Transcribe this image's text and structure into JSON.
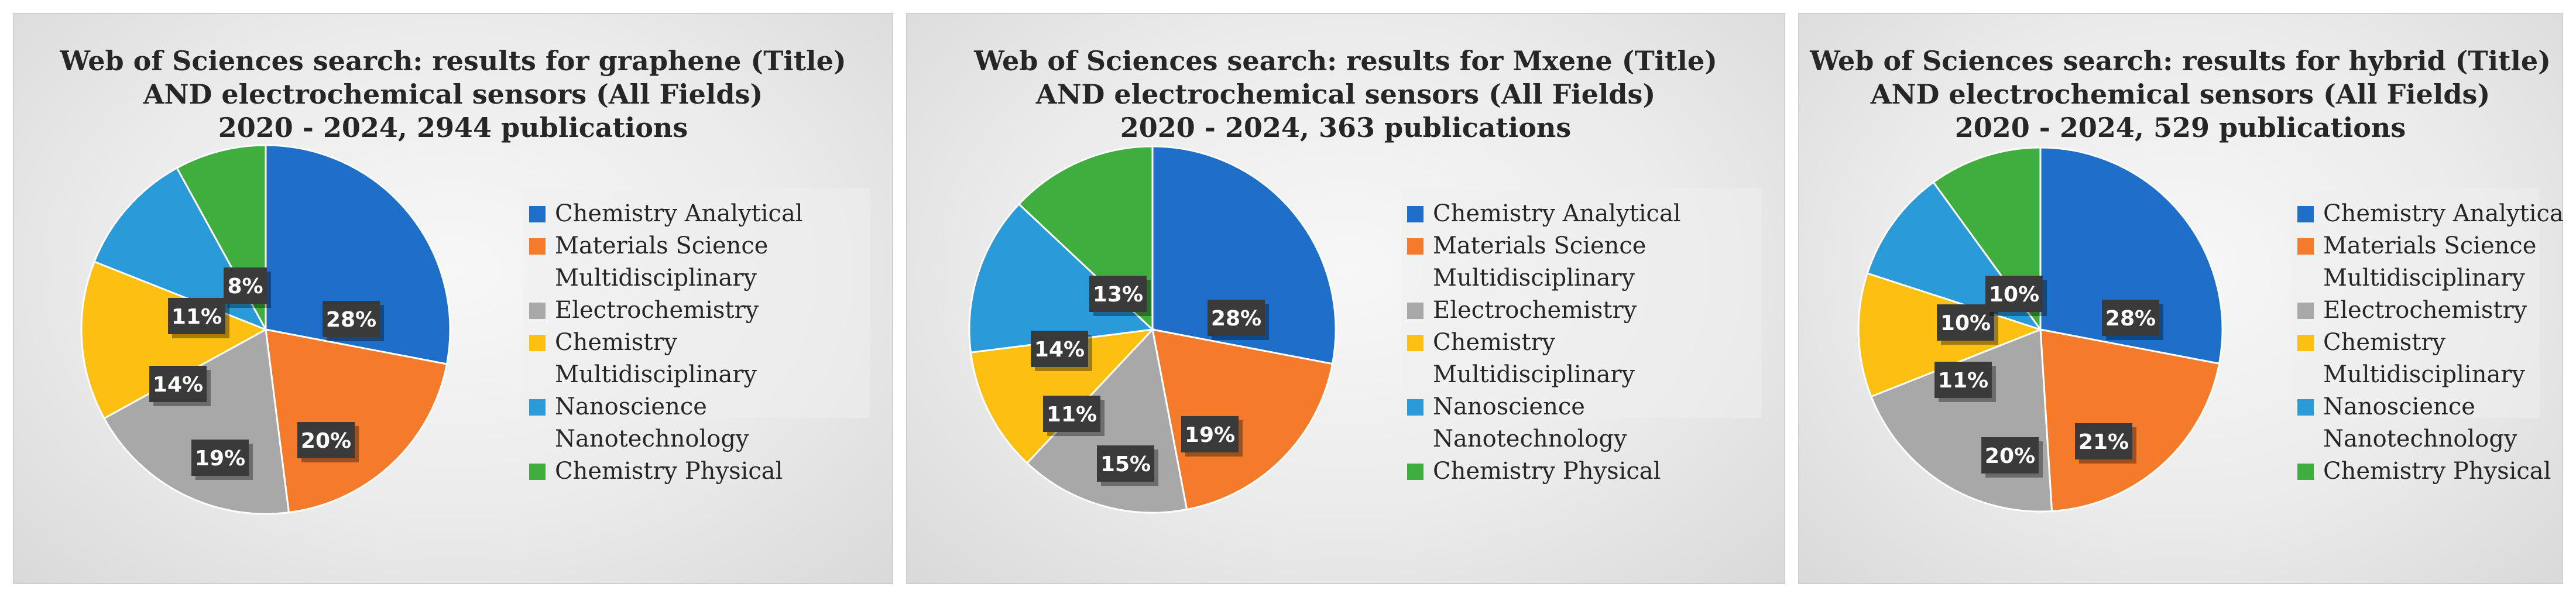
{
  "colors": {
    "Chemistry Analytical": "#1f6fc9",
    "Materials Science Multidisciplinary": "#f47b2c",
    "Electrochemistry": "#a8a8a8",
    "Chemistry Multidisciplinary": "#fdbf12",
    "Nanoscience Nanotechnology": "#2a9ad8",
    "Chemistry Physical": "#3fae3f"
  },
  "chart_data": [
    {
      "type": "pie",
      "title_lines": [
        "Web of Sciences search: results for graphene (Title)",
        "AND electrochemical sensors (All Fields)",
        "2020 - 2024, 2944 publications"
      ],
      "legend_position": "right",
      "legend_lines": [
        {
          "text": "Chemistry Analytical",
          "swatch": "Chemistry Analytical"
        },
        {
          "text": "Materials Science",
          "swatch": "Materials Science Multidisciplinary"
        },
        {
          "text": "Multidisciplinary",
          "swatch": null
        },
        {
          "text": "Electrochemistry",
          "swatch": "Electrochemistry"
        },
        {
          "text": "Chemistry",
          "swatch": "Chemistry Multidisciplinary"
        },
        {
          "text": "Multidisciplinary",
          "swatch": null
        },
        {
          "text": "Nanoscience",
          "swatch": "Nanoscience Nanotechnology"
        },
        {
          "text": "Nanotechnology",
          "swatch": null
        },
        {
          "text": "Chemistry Physical",
          "swatch": "Chemistry Physical"
        }
      ],
      "slices": [
        {
          "category": "Chemistry Analytical",
          "value": 28,
          "label": "28%"
        },
        {
          "category": "Materials Science Multidisciplinary",
          "value": 20,
          "label": "20%"
        },
        {
          "category": "Electrochemistry",
          "value": 19,
          "label": "19%"
        },
        {
          "category": "Chemistry Multidisciplinary",
          "value": 14,
          "label": "14%"
        },
        {
          "category": "Nanoscience Nanotechnology",
          "value": 11,
          "label": "11%"
        },
        {
          "category": "Chemistry Physical",
          "value": 8,
          "label": "8%"
        }
      ]
    },
    {
      "type": "pie",
      "title_lines": [
        "Web of Sciences search: results for Mxene (Title)",
        "AND electrochemical sensors (All Fields)",
        "2020 - 2024, 363 publications"
      ],
      "legend_position": "right",
      "legend_lines": [
        {
          "text": "Chemistry Analytical",
          "swatch": "Chemistry Analytical"
        },
        {
          "text": "Materials Science",
          "swatch": "Materials Science Multidisciplinary"
        },
        {
          "text": "Multidisciplinary",
          "swatch": null
        },
        {
          "text": "Electrochemistry",
          "swatch": "Electrochemistry"
        },
        {
          "text": "Chemistry",
          "swatch": "Chemistry Multidisciplinary"
        },
        {
          "text": "Multidisciplinary",
          "swatch": null
        },
        {
          "text": "Nanoscience",
          "swatch": "Nanoscience Nanotechnology"
        },
        {
          "text": "Nanotechnology",
          "swatch": null
        },
        {
          "text": "Chemistry Physical",
          "swatch": "Chemistry Physical"
        }
      ],
      "slices": [
        {
          "category": "Chemistry Analytical",
          "value": 28,
          "label": "28%"
        },
        {
          "category": "Materials Science Multidisciplinary",
          "value": 19,
          "label": "19%"
        },
        {
          "category": "Electrochemistry",
          "value": 15,
          "label": "15%"
        },
        {
          "category": "Chemistry Multidisciplinary",
          "value": 11,
          "label": "11%"
        },
        {
          "category": "Nanoscience Nanotechnology",
          "value": 14,
          "label": "14%"
        },
        {
          "category": "Chemistry Physical",
          "value": 13,
          "label": "13%"
        }
      ]
    },
    {
      "type": "pie",
      "title_lines": [
        "Web of Sciences search: results for hybrid (Title)",
        "AND electrochemical sensors (All Fields)",
        "2020 - 2024, 529 publications"
      ],
      "legend_position": "right",
      "legend_lines": [
        {
          "text": "Chemistry Analytical",
          "swatch": "Chemistry Analytical"
        },
        {
          "text": "Materials Science",
          "swatch": "Materials Science Multidisciplinary"
        },
        {
          "text": "Multidisciplinary",
          "swatch": null
        },
        {
          "text": "Electrochemistry",
          "swatch": "Electrochemistry"
        },
        {
          "text": "Chemistry",
          "swatch": "Chemistry Multidisciplinary"
        },
        {
          "text": "Multidisciplinary",
          "swatch": null
        },
        {
          "text": "Nanoscience",
          "swatch": "Nanoscience Nanotechnology"
        },
        {
          "text": "Nanotechnology",
          "swatch": null
        },
        {
          "text": "Chemistry Physical",
          "swatch": "Chemistry Physical"
        }
      ],
      "slices": [
        {
          "category": "Chemistry Analytical",
          "value": 28,
          "label": "28%"
        },
        {
          "category": "Materials Science Multidisciplinary",
          "value": 21,
          "label": "21%"
        },
        {
          "category": "Electrochemistry",
          "value": 20,
          "label": "20%"
        },
        {
          "category": "Chemistry Multidisciplinary",
          "value": 11,
          "label": "11%"
        },
        {
          "category": "Nanoscience Nanotechnology",
          "value": 10,
          "label": "10%"
        },
        {
          "category": "Chemistry Physical",
          "value": 10,
          "label": "10%"
        }
      ]
    }
  ]
}
